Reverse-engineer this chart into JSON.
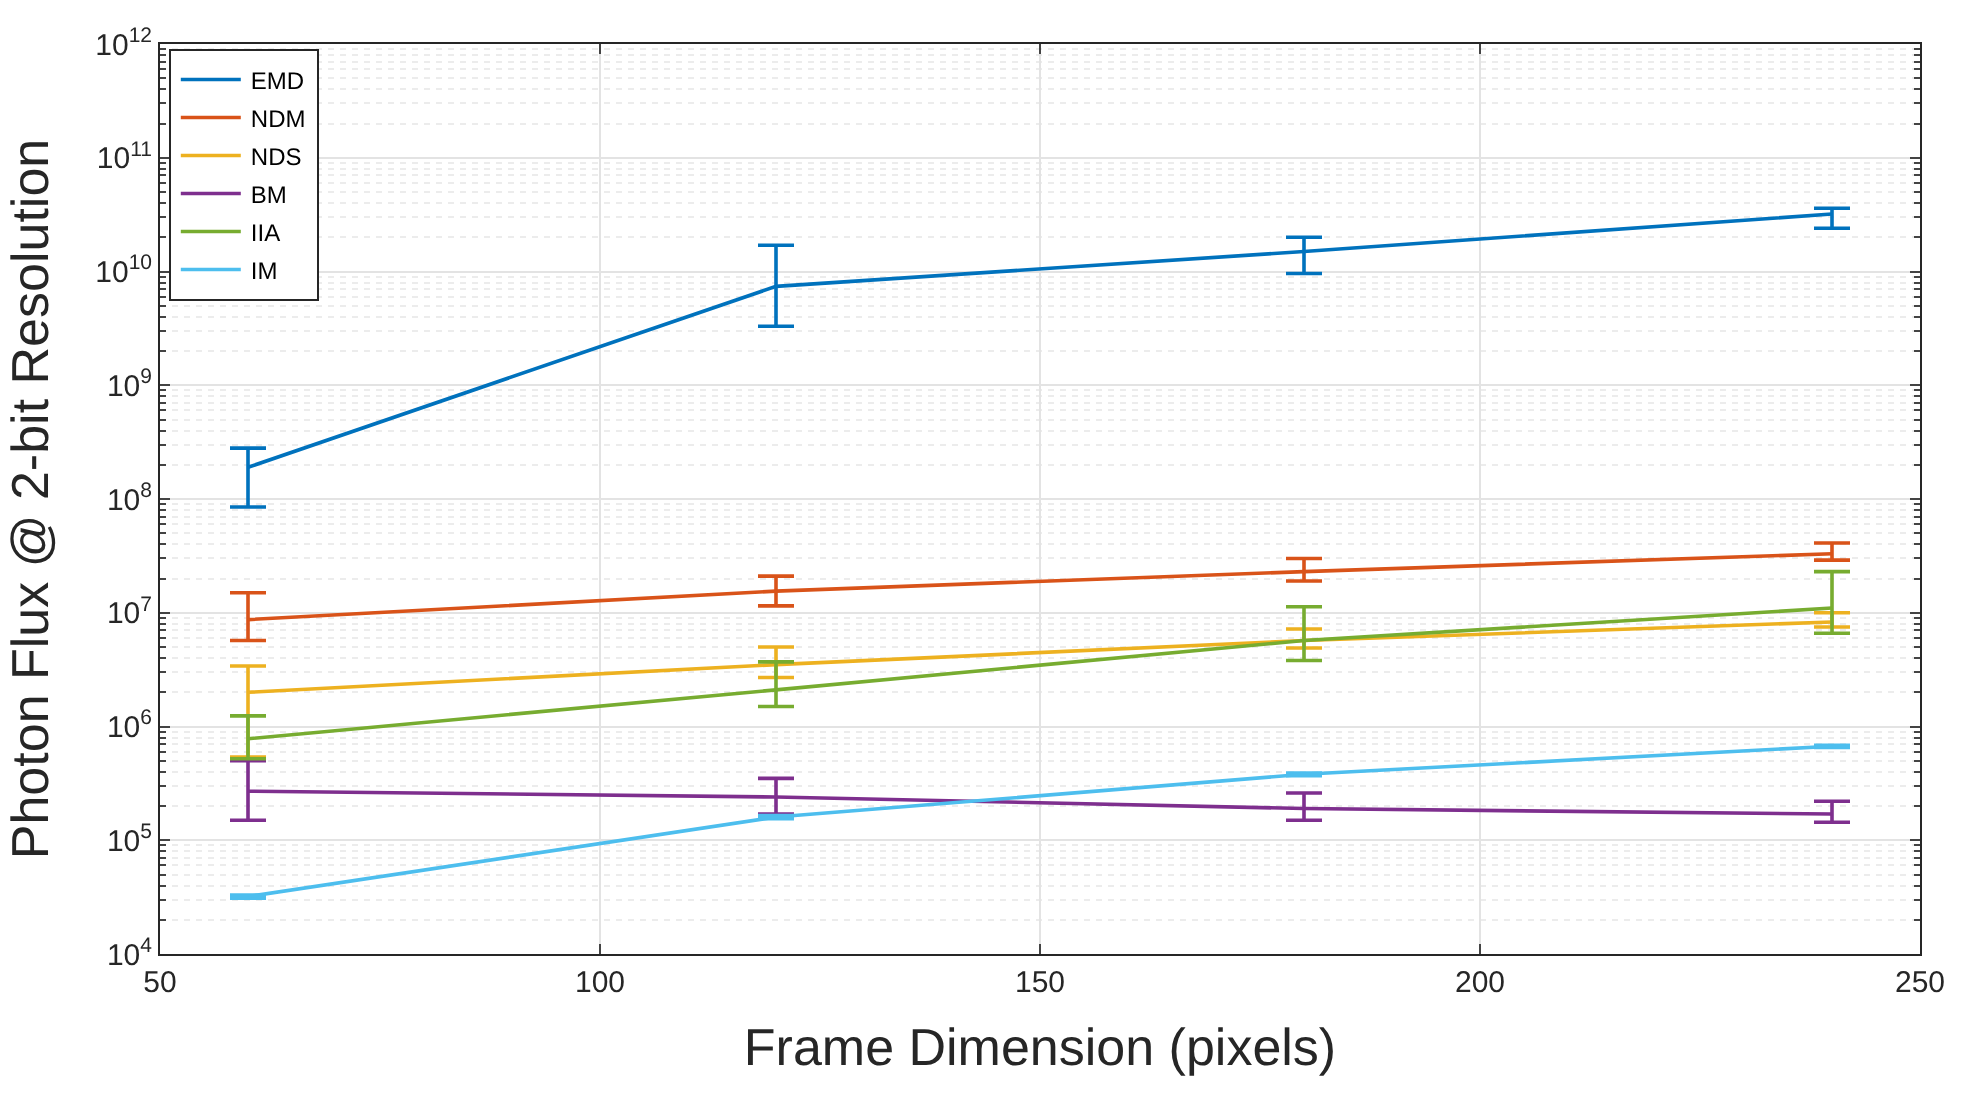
{
  "chart_data": {
    "type": "line",
    "xlabel": "Frame Dimension (pixels)",
    "ylabel": "Photon Flux @ 2-bit Resolution",
    "x": [
      60,
      120,
      180,
      240
    ],
    "series": [
      {
        "name": "EMD",
        "color": "#0072bd",
        "values": [
          190000000,
          7400000000,
          15000000000,
          32000000000
        ],
        "errors": [
          [
            85000000,
            280000000
          ],
          [
            3300000000,
            17000000000
          ],
          [
            9600000000,
            20000000000
          ],
          [
            24000000000,
            36000000000
          ]
        ]
      },
      {
        "name": "NDM",
        "color": "#d95319",
        "values": [
          8700000,
          15500000,
          23000000,
          33000000
        ],
        "errors": [
          [
            5700000,
            15000000
          ],
          [
            11500000,
            21000000
          ],
          [
            19000000,
            30000000
          ],
          [
            29000000,
            41000000
          ]
        ]
      },
      {
        "name": "NDS",
        "color": "#edb120",
        "values": [
          2000000,
          3500000,
          5700000,
          8300000
        ],
        "errors": [
          [
            540000,
            3400000
          ],
          [
            2700000,
            5000000
          ],
          [
            4900000,
            7200000
          ],
          [
            7500000,
            10000000
          ]
        ]
      },
      {
        "name": "BM",
        "color": "#7e2f8e",
        "values": [
          270000,
          240000,
          190000,
          170000
        ],
        "errors": [
          [
            150000,
            500000
          ],
          [
            170000,
            350000
          ],
          [
            150000,
            260000
          ],
          [
            144000,
            220000
          ]
        ]
      },
      {
        "name": "IIA",
        "color": "#77ac30",
        "values": [
          780000,
          2100000,
          5700000,
          11000000
        ],
        "errors": [
          [
            520000,
            1240000
          ],
          [
            1500000,
            3700000
          ],
          [
            3800000,
            11300000
          ],
          [
            6600000,
            23000000
          ]
        ]
      },
      {
        "name": "IM",
        "color": "#4dbeee",
        "values": [
          32000,
          160000,
          380000,
          670000
        ],
        "errors": [
          [
            31000,
            33000
          ],
          [
            155000,
            165000
          ],
          [
            370000,
            390000
          ],
          [
            655000,
            685000
          ]
        ]
      }
    ],
    "xlim": [
      50,
      250
    ],
    "xticks": [
      50,
      100,
      150,
      200,
      250
    ],
    "ylim": [
      10000,
      1000000000000
    ],
    "log": true,
    "yticks": [
      {
        "value": 10000,
        "label": "10$^{4}$"
      },
      {
        "value": 100000,
        "label": "10$^{5}$"
      },
      {
        "value": 1000000,
        "label": "10$^{6}$"
      },
      {
        "value": 10000000,
        "label": "10$^{7}$"
      },
      {
        "value": 100000000,
        "label": "10$^{8}$"
      },
      {
        "value": 1000000000,
        "label": "10$^{9}$"
      },
      {
        "value": 10000000000,
        "label": "10$^{10}$"
      },
      {
        "value": 100000000000,
        "label": "10$^{11}$"
      },
      {
        "value": 1000000000000,
        "label": "10$^{12}$"
      }
    ],
    "grid": true,
    "legend": "top left",
    "line_style": "solid"
  }
}
